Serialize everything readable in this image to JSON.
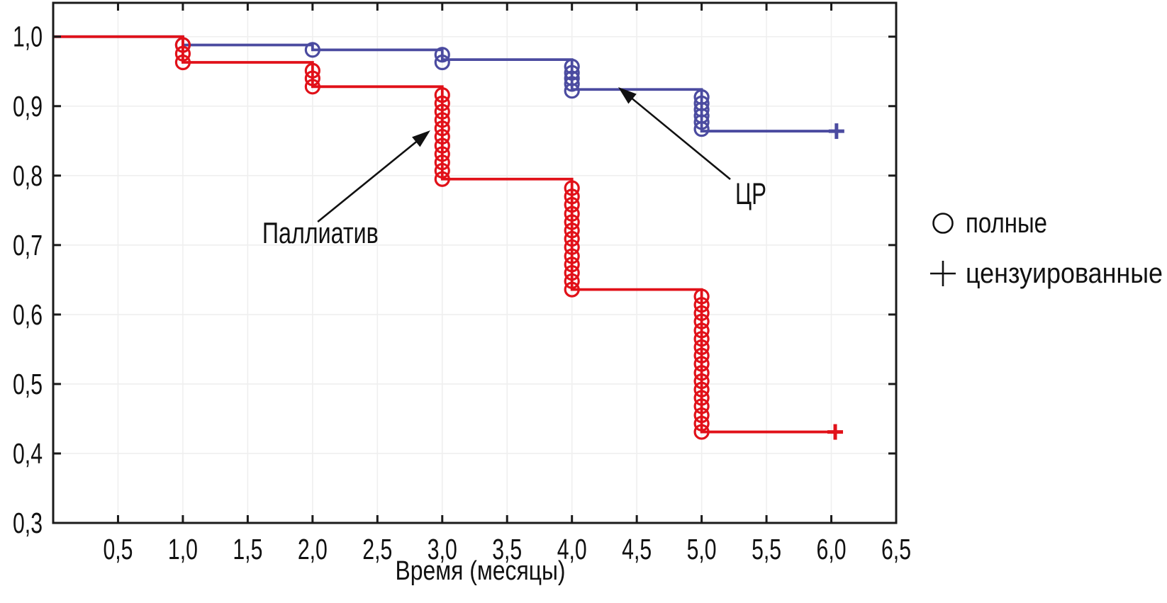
{
  "chart_data": {
    "type": "line",
    "chart_kind": "kaplan-meier-step-survival",
    "title": "",
    "xlabel": "Время (месяцы)",
    "ylabel": "",
    "xlim": [
      0,
      6.5
    ],
    "ylim": [
      0.3,
      1.0487
    ],
    "grid": true,
    "x_tick_values": [
      0.5,
      1.0,
      1.5,
      2.0,
      2.5,
      3.0,
      3.5,
      4.0,
      4.5,
      5.0,
      5.5,
      6.0,
      6.5
    ],
    "x_tick_labels": [
      "0,5",
      "1,0",
      "1,5",
      "2,0",
      "2,5",
      "3,0",
      "3,5",
      "4,0",
      "4,5",
      "5,0",
      "5,5",
      "6,0",
      "6,5"
    ],
    "y_tick_values": [
      0.3,
      0.4,
      0.5,
      0.6,
      0.7,
      0.8,
      0.9,
      1.0
    ],
    "y_tick_labels": [
      "0,3",
      "0,4",
      "0,5",
      "0,6",
      "0,7",
      "0,8",
      "0,9",
      "1,0"
    ],
    "series": [
      {
        "id": "cr",
        "name": "ЦР",
        "color": "#4b4ba0",
        "start": {
          "t": 0,
          "level": 1.0
        },
        "steps": [
          {
            "t": 1,
            "level": 0.988,
            "events": [
              0.988
            ]
          },
          {
            "t": 2,
            "level": 0.981,
            "events": [
              0.981
            ]
          },
          {
            "t": 3,
            "level": 0.967,
            "events": [
              0.974,
              0.963
            ]
          },
          {
            "t": 4,
            "level": 0.924,
            "events": [
              0.957,
              0.948,
              0.94,
              0.932,
              0.922
            ]
          },
          {
            "t": 5,
            "level": 0.864,
            "events": [
              0.913,
              0.904,
              0.895,
              0.886,
              0.877,
              0.867
            ]
          }
        ],
        "censored": {
          "t": 6.04,
          "level": 0.864
        }
      },
      {
        "id": "palliative",
        "name": "Паллиатив",
        "color": "#e11119",
        "start": {
          "t": 0,
          "level": 1.0
        },
        "steps": [
          {
            "t": 1,
            "level": 0.963,
            "events": [
              0.988,
              0.9755,
              0.963
            ]
          },
          {
            "t": 2,
            "level": 0.928,
            "events": [
              0.951,
              0.94,
              0.928
            ]
          },
          {
            "t": 3,
            "level": 0.795,
            "events": [
              0.916,
              0.904,
              0.892,
              0.88,
              0.868,
              0.856,
              0.843,
              0.831,
              0.819,
              0.807,
              0.795
            ]
          },
          {
            "t": 4,
            "level": 0.636,
            "events": [
              0.782,
              0.77,
              0.758,
              0.745,
              0.733,
              0.721,
              0.709,
              0.697,
              0.684,
              0.672,
              0.66,
              0.648,
              0.636
            ]
          },
          {
            "t": 5,
            "level": 0.431,
            "events": [
              0.626,
              0.614,
              0.602,
              0.59,
              0.577,
              0.565,
              0.553,
              0.541,
              0.529,
              0.516,
              0.504,
              0.492,
              0.48,
              0.468,
              0.455,
              0.443,
              0.431
            ]
          }
        ],
        "censored": {
          "t": 6.03,
          "level": 0.431
        }
      }
    ],
    "annotations": [
      {
        "id": "palliative-label",
        "text": "Паллиатив",
        "text_t": 2.06,
        "text_v": 0.703,
        "anchor": "middle",
        "font_px": 42,
        "text_length": 164,
        "arrow_from_t": 2.04,
        "arrow_from_v": 0.7335,
        "arrow_to_t": 2.908,
        "arrow_to_v": 0.8651
      },
      {
        "id": "cr-label",
        "text": "ЦР",
        "text_t": 5.379,
        "text_v": 0.759,
        "anchor": "middle",
        "font_px": 43,
        "text_length": 44,
        "arrow_from_t": 5.221,
        "arrow_from_v": 0.7947,
        "arrow_to_t": 4.357,
        "arrow_to_v": 0.9273
      }
    ],
    "legend": {
      "position": "right-outside",
      "items": [
        {
          "marker": "circle",
          "label": "полные",
          "text_length": 115
        },
        {
          "marker": "plus",
          "label": "цензуированные",
          "text_length": 278
        }
      ]
    }
  },
  "colors": {
    "axis": "#1a1a1a",
    "grid": "#efefef",
    "text": "#111111",
    "series_cr": "#4b4ba0",
    "series_palliative": "#e11119"
  }
}
